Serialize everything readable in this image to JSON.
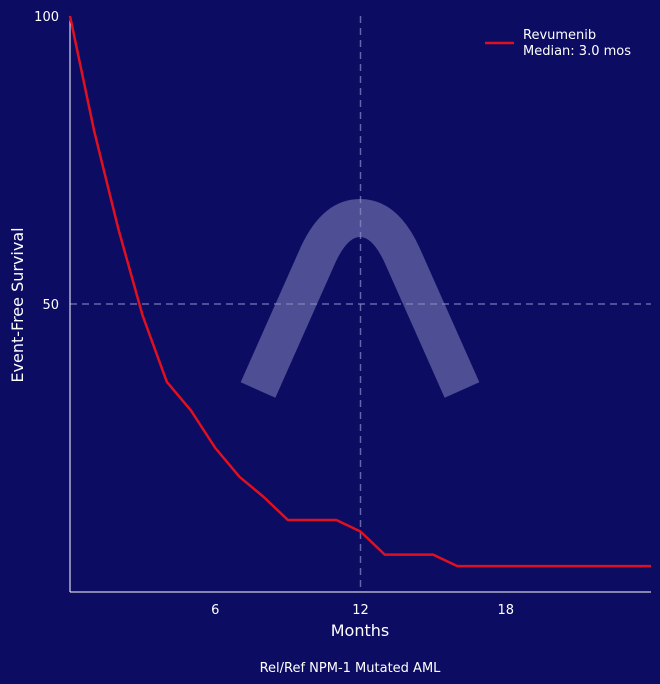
{
  "chart_data": {
    "type": "line",
    "xlabel": "Months",
    "ylabel": "Event-Free Survival",
    "caption": "Rel/Ref NPM-1 Mutated AML",
    "xlim": [
      0,
      24
    ],
    "ylim": [
      0,
      100
    ],
    "xticks": [
      6,
      12,
      18
    ],
    "yticks": [
      50,
      100
    ],
    "reference_lines": {
      "x": 12,
      "y": 50
    },
    "legend": {
      "position": "top-right"
    },
    "series": [
      {
        "name": "Revumenib",
        "median_label": "Median: 3.0 mos",
        "color": "#e0101e",
        "x": [
          0,
          1,
          2,
          3,
          4,
          5,
          6,
          7,
          8,
          9,
          10,
          11,
          12,
          13,
          14,
          15,
          16,
          17,
          18,
          19,
          20,
          21,
          22,
          23,
          24
        ],
        "y": [
          100,
          80,
          63,
          48,
          36.5,
          31.5,
          25,
          20,
          16.5,
          12.5,
          12.5,
          12.5,
          10.5,
          6.5,
          6.5,
          6.5,
          4.5,
          4.5,
          4.5,
          4.5,
          4.5,
          4.5,
          4.5,
          4.5,
          4.5
        ]
      }
    ]
  },
  "watermark": {
    "icon": "caret-arch-watermark-icon",
    "color": "#5a5a9e"
  }
}
